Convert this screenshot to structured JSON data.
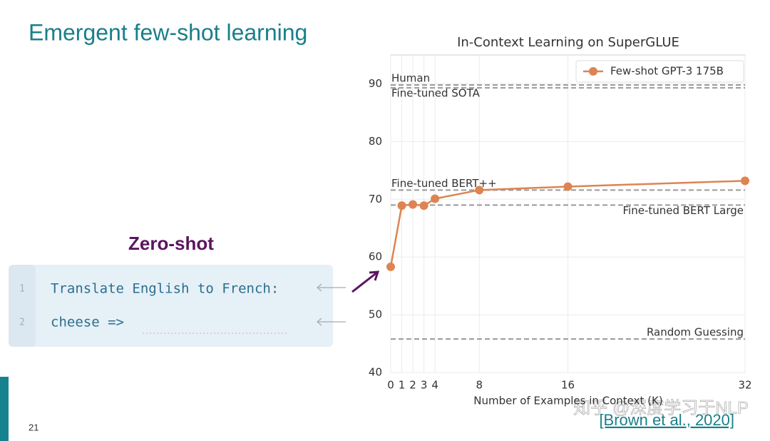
{
  "slide": {
    "title": "Emergent few-shot learning",
    "label": "Zero-shot",
    "code_lines": [
      {
        "number": "1",
        "text": "Translate English to French:"
      },
      {
        "number": "2",
        "text": "cheese =>"
      }
    ],
    "page_number": "21",
    "citation": "[Brown et al., 2020]",
    "watermark": "知乎 @深度学习于NLP"
  },
  "chart_data": {
    "type": "line",
    "title": "In-Context Learning on SuperGLUE",
    "x_label": "Number of Examples in Context (K)",
    "x": [
      0,
      1,
      2,
      3,
      4,
      8,
      16,
      32
    ],
    "series": [
      {
        "name": "Few-shot GPT-3 175B",
        "color": "#dd8452",
        "values": [
          58.3,
          68.9,
          69.1,
          68.9,
          70.1,
          71.6,
          72.2,
          73.2
        ]
      }
    ],
    "xlim": [
      0,
      32
    ],
    "xticks": [
      0,
      1,
      2,
      3,
      4,
      8,
      16,
      32
    ],
    "ylim": [
      40,
      95
    ],
    "yticks": [
      40,
      50,
      60,
      70,
      80,
      90
    ],
    "grid": true,
    "legend": "upper-right",
    "reference_lines": [
      {
        "label": "Human",
        "value": 89.8,
        "label_position": "above-left"
      },
      {
        "label": "Fine-tuned SOTA",
        "value": 89.3,
        "label_position": "below-left"
      },
      {
        "label": "Fine-tuned BERT++",
        "value": 71.6,
        "label_position": "above-left"
      },
      {
        "label": "Fine-tuned BERT Large",
        "value": 69.0,
        "label_position": "below-right"
      },
      {
        "label": "Random Guessing",
        "value": 45.8,
        "label_position": "above-right"
      }
    ],
    "reference_color": "#999999"
  }
}
